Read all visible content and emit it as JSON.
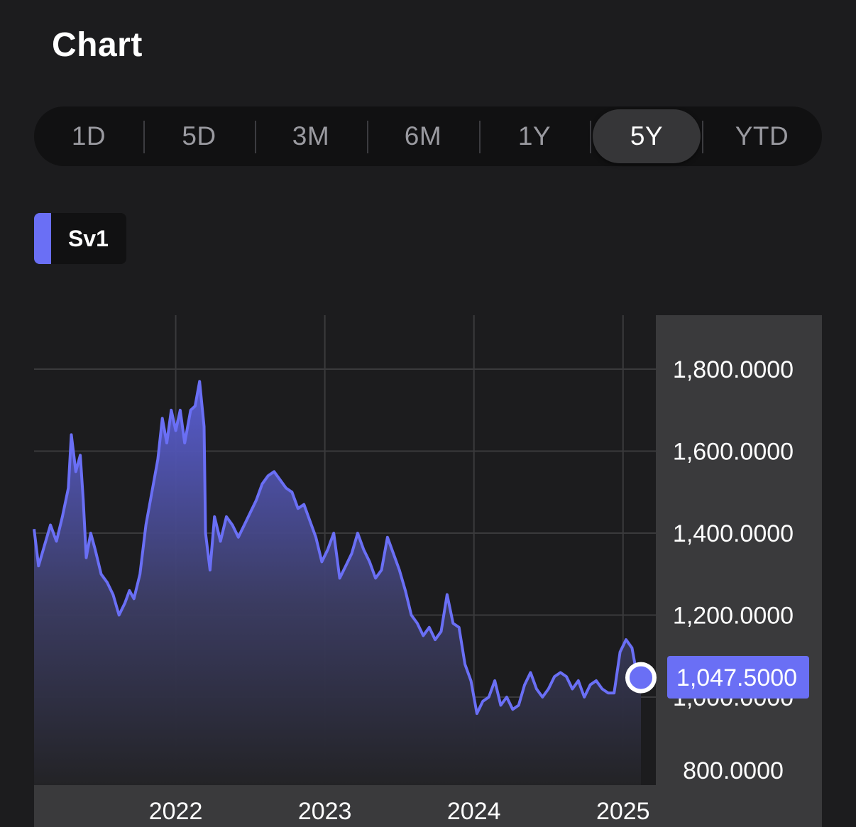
{
  "header": {
    "title": "Chart"
  },
  "range_tabs": [
    {
      "label": "1D",
      "active": false
    },
    {
      "label": "5D",
      "active": false
    },
    {
      "label": "3M",
      "active": false
    },
    {
      "label": "6M",
      "active": false
    },
    {
      "label": "1Y",
      "active": false
    },
    {
      "label": "5Y",
      "active": true
    },
    {
      "label": "YTD",
      "active": false
    }
  ],
  "colors": {
    "background": "#1c1c1e",
    "series": "#6a6ff5",
    "axis_panel": "#3a3a3c",
    "grid": "#3a3a3c",
    "current_badge": "#6a6ff5"
  },
  "chart_data": {
    "type": "area",
    "legend": [
      {
        "name": "Sv1",
        "color": "#6a6ff5"
      }
    ],
    "x_ticks": [
      "2022",
      "2023",
      "2024",
      "2025"
    ],
    "y_ticks": [
      "1,800.0000",
      "1,600.0000",
      "1,400.0000",
      "1,200.0000",
      "1,000.0000",
      "800.0000"
    ],
    "ylim": [
      760,
      1930
    ],
    "xlim": [
      2021.05,
      2025.22
    ],
    "current_value": 1047.5,
    "current_label": "1,047.5000",
    "grid": true,
    "series": [
      {
        "name": "Sv1",
        "points": [
          [
            2021.05,
            1410
          ],
          [
            2021.08,
            1320
          ],
          [
            2021.12,
            1370
          ],
          [
            2021.16,
            1420
          ],
          [
            2021.2,
            1380
          ],
          [
            2021.24,
            1440
          ],
          [
            2021.28,
            1510
          ],
          [
            2021.3,
            1640
          ],
          [
            2021.33,
            1550
          ],
          [
            2021.36,
            1590
          ],
          [
            2021.38,
            1480
          ],
          [
            2021.4,
            1340
          ],
          [
            2021.43,
            1400
          ],
          [
            2021.46,
            1360
          ],
          [
            2021.5,
            1300
          ],
          [
            2021.54,
            1280
          ],
          [
            2021.58,
            1250
          ],
          [
            2021.62,
            1200
          ],
          [
            2021.66,
            1230
          ],
          [
            2021.69,
            1260
          ],
          [
            2021.72,
            1240
          ],
          [
            2021.76,
            1300
          ],
          [
            2021.8,
            1420
          ],
          [
            2021.84,
            1500
          ],
          [
            2021.88,
            1580
          ],
          [
            2021.91,
            1680
          ],
          [
            2021.94,
            1620
          ],
          [
            2021.97,
            1700
          ],
          [
            2022.0,
            1650
          ],
          [
            2022.03,
            1700
          ],
          [
            2022.06,
            1620
          ],
          [
            2022.1,
            1700
          ],
          [
            2022.13,
            1710
          ],
          [
            2022.16,
            1770
          ],
          [
            2022.19,
            1660
          ],
          [
            2022.2,
            1400
          ],
          [
            2022.23,
            1310
          ],
          [
            2022.26,
            1440
          ],
          [
            2022.3,
            1380
          ],
          [
            2022.34,
            1440
          ],
          [
            2022.38,
            1420
          ],
          [
            2022.42,
            1390
          ],
          [
            2022.46,
            1420
          ],
          [
            2022.5,
            1450
          ],
          [
            2022.54,
            1480
          ],
          [
            2022.58,
            1520
          ],
          [
            2022.62,
            1540
          ],
          [
            2022.66,
            1550
          ],
          [
            2022.7,
            1530
          ],
          [
            2022.74,
            1510
          ],
          [
            2022.78,
            1500
          ],
          [
            2022.82,
            1460
          ],
          [
            2022.86,
            1470
          ],
          [
            2022.9,
            1430
          ],
          [
            2022.94,
            1390
          ],
          [
            2022.98,
            1330
          ],
          [
            2023.02,
            1360
          ],
          [
            2023.06,
            1400
          ],
          [
            2023.1,
            1290
          ],
          [
            2023.14,
            1320
          ],
          [
            2023.18,
            1350
          ],
          [
            2023.22,
            1400
          ],
          [
            2023.26,
            1360
          ],
          [
            2023.3,
            1330
          ],
          [
            2023.34,
            1290
          ],
          [
            2023.38,
            1310
          ],
          [
            2023.42,
            1390
          ],
          [
            2023.46,
            1350
          ],
          [
            2023.5,
            1310
          ],
          [
            2023.54,
            1260
          ],
          [
            2023.58,
            1200
          ],
          [
            2023.62,
            1180
          ],
          [
            2023.66,
            1150
          ],
          [
            2023.7,
            1170
          ],
          [
            2023.74,
            1140
          ],
          [
            2023.78,
            1160
          ],
          [
            2023.82,
            1250
          ],
          [
            2023.86,
            1180
          ],
          [
            2023.9,
            1170
          ],
          [
            2023.94,
            1080
          ],
          [
            2023.98,
            1040
          ],
          [
            2024.02,
            960
          ],
          [
            2024.06,
            990
          ],
          [
            2024.1,
            1000
          ],
          [
            2024.14,
            1040
          ],
          [
            2024.18,
            980
          ],
          [
            2024.22,
            1000
          ],
          [
            2024.26,
            970
          ],
          [
            2024.3,
            980
          ],
          [
            2024.34,
            1030
          ],
          [
            2024.38,
            1060
          ],
          [
            2024.42,
            1020
          ],
          [
            2024.46,
            1000
          ],
          [
            2024.5,
            1020
          ],
          [
            2024.54,
            1050
          ],
          [
            2024.58,
            1060
          ],
          [
            2024.62,
            1050
          ],
          [
            2024.66,
            1020
          ],
          [
            2024.7,
            1040
          ],
          [
            2024.74,
            1000
          ],
          [
            2024.78,
            1030
          ],
          [
            2024.82,
            1040
          ],
          [
            2024.86,
            1020
          ],
          [
            2024.9,
            1010
          ],
          [
            2024.94,
            1010
          ],
          [
            2024.98,
            1110
          ],
          [
            2025.02,
            1140
          ],
          [
            2025.06,
            1120
          ],
          [
            2025.09,
            1060
          ],
          [
            2025.12,
            1047.5
          ]
        ]
      }
    ]
  }
}
